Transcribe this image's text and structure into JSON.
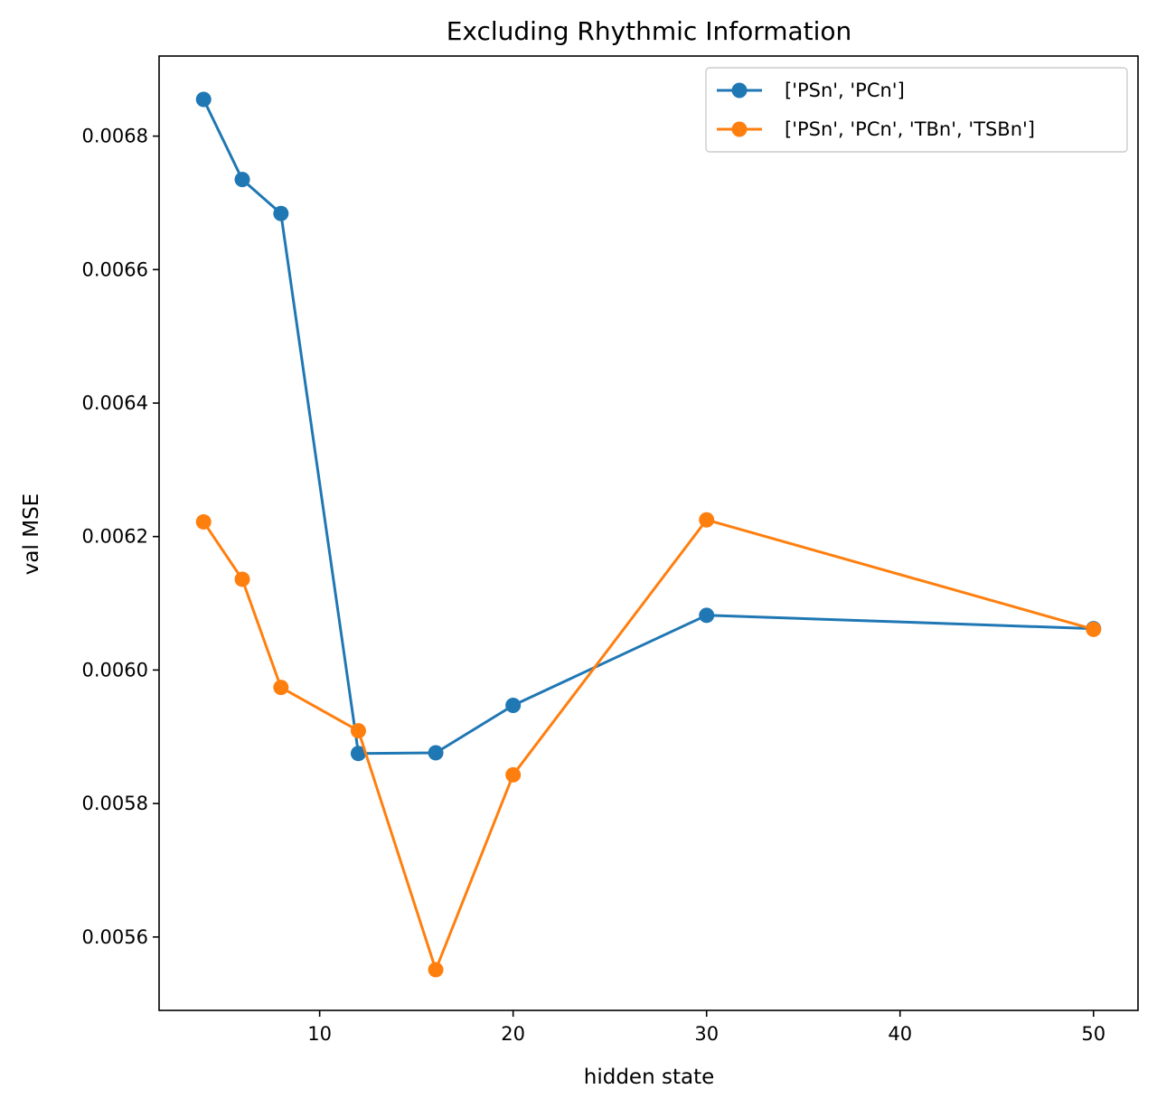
{
  "chart_data": {
    "type": "line",
    "title": "Excluding Rhythmic Information",
    "xlabel": "hidden state",
    "ylabel": "val MSE",
    "xlim": [
      1.7,
      52.3
    ],
    "ylim": [
      0.00549,
      0.00692
    ],
    "xticks": [
      10,
      20,
      30,
      40,
      50
    ],
    "xtick_labels": [
      "10",
      "20",
      "30",
      "40",
      "50"
    ],
    "yticks": [
      0.0056,
      0.0058,
      0.006,
      0.0062,
      0.0064,
      0.0066,
      0.0068
    ],
    "ytick_labels": [
      "0.0056",
      "0.0058",
      "0.0060",
      "0.0062",
      "0.0064",
      "0.0066",
      "0.0068"
    ],
    "grid": false,
    "legend_position": "top-right",
    "series": [
      {
        "name": "['PSn', 'PCn']",
        "color": "#1f77b4",
        "x": [
          4,
          6,
          8,
          12,
          16,
          20,
          30,
          50
        ],
        "y": [
          0.006855,
          0.006735,
          0.006684,
          0.005875,
          0.005876,
          0.005947,
          0.006082,
          0.006062
        ]
      },
      {
        "name": "['PSn', 'PCn', 'TBn', 'TSBn']",
        "color": "#ff7f0e",
        "x": [
          4,
          6,
          8,
          12,
          16,
          20,
          30,
          50
        ],
        "y": [
          0.006222,
          0.006136,
          0.005974,
          0.005909,
          0.005551,
          0.005843,
          0.006225,
          0.006061
        ]
      }
    ]
  }
}
